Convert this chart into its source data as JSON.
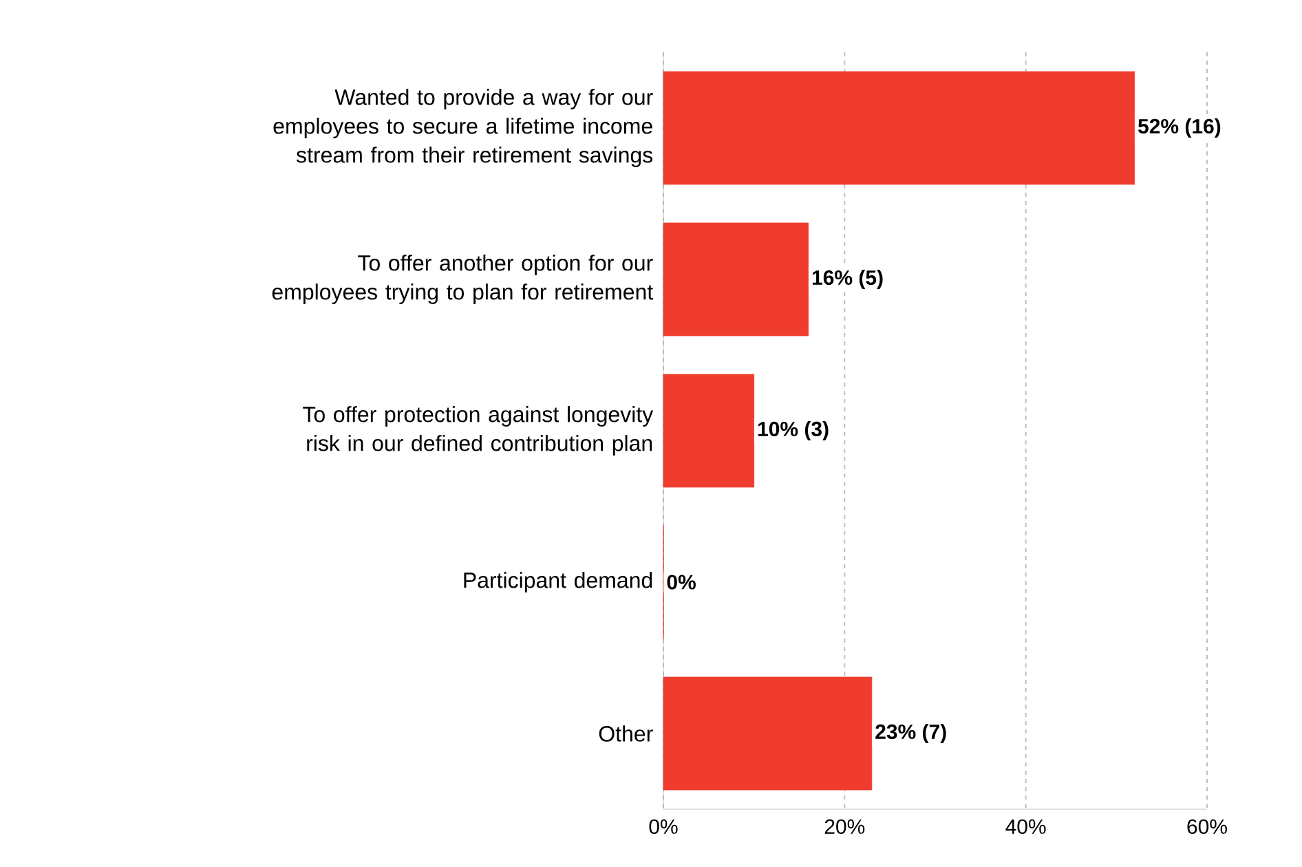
{
  "chart_data": {
    "type": "bar",
    "orientation": "horizontal",
    "categories": [
      "Wanted to provide a way for our employees to secure a lifetime income stream from their retirement savings",
      "To offer another option for our employees trying to plan for retirement",
      "To offer protection against longevity risk in our defined contribution plan",
      "Participant demand",
      "Other"
    ],
    "values": [
      52,
      16,
      10,
      0,
      23
    ],
    "value_labels": [
      "52% (16)",
      "16% (5)",
      "10% (3)",
      "0%",
      "23% (7)"
    ],
    "color": "#f03c2e",
    "xlim": [
      0,
      60
    ],
    "xticks": [
      {
        "value": 0,
        "label": "0%"
      },
      {
        "value": 20,
        "label": "20%"
      },
      {
        "value": 40,
        "label": "40%"
      },
      {
        "value": 60,
        "label": "60%"
      }
    ],
    "grid": "x"
  }
}
